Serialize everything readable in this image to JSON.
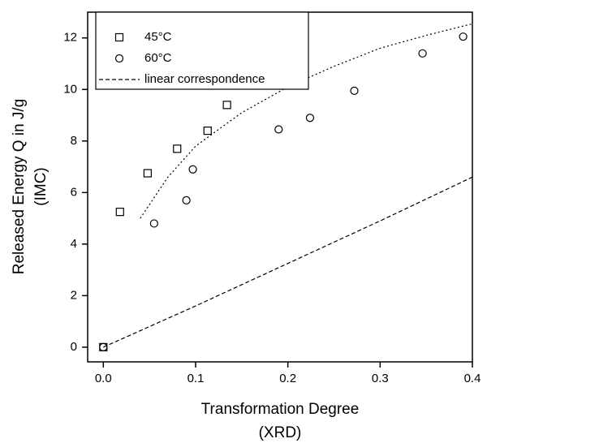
{
  "chart_data": {
    "type": "scatter",
    "xlabel": [
      "Transformation Degree",
      "(XRD)"
    ],
    "ylabel": [
      "Released Energy Q in J/g",
      "(IMC)"
    ],
    "xlim": [
      -0.017,
      0.4
    ],
    "ylim": [
      -0.57,
      13.0
    ],
    "xticks": [
      {
        "value": 0,
        "label": "0.0"
      },
      0.1,
      0.2,
      0.3,
      0.4
    ],
    "yticks": [
      0,
      2,
      4,
      6,
      8,
      10,
      12
    ],
    "legend": "upper left",
    "series": [
      {
        "name": "45°C",
        "mode": "markers",
        "marker": "square",
        "color": "#000000",
        "x": [
          0,
          0.018,
          0.048,
          0.08,
          0.113,
          0.134
        ],
        "values": [
          0,
          5.25,
          6.75,
          7.7,
          8.4,
          9.4
        ]
      },
      {
        "name": "60°C",
        "mode": "markers",
        "marker": "circle",
        "color": "#000000",
        "x": [
          0,
          0.055,
          0.09,
          0.097,
          0.19,
          0.224,
          0.272,
          0.346,
          0.39
        ],
        "values": [
          0,
          4.8,
          5.7,
          6.9,
          8.45,
          8.9,
          9.95,
          11.4,
          12.05
        ]
      },
      {
        "name": "linear correspondence",
        "mode": "line",
        "dash": "dashed",
        "color": "#000000",
        "x": [
          0,
          0.1,
          0.2,
          0.3,
          0.4
        ],
        "values": [
          0,
          1.6,
          3.25,
          4.9,
          6.6
        ]
      },
      {
        "mode": "line",
        "dash": "dotted",
        "color": "#000000",
        "x": [
          0.04,
          0.07,
          0.1,
          0.15,
          0.2,
          0.25,
          0.3,
          0.35,
          0.4
        ],
        "values": [
          5.0,
          6.6,
          7.8,
          9.1,
          10.1,
          10.9,
          11.6,
          12.1,
          12.55
        ]
      }
    ]
  }
}
